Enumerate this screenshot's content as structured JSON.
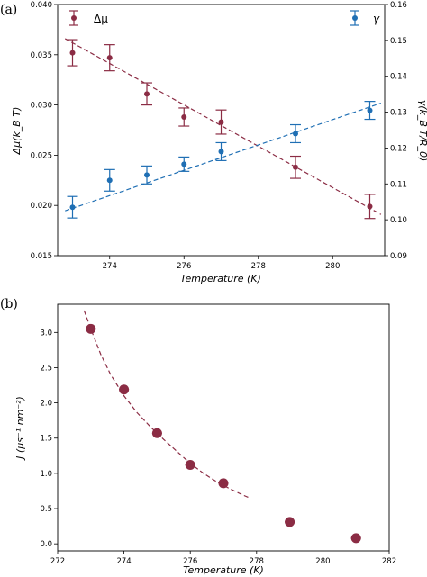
{
  "figure": {
    "panel_a_label": "(a)",
    "panel_b_label": "(b)"
  },
  "chart_data": [
    {
      "type": "scatter",
      "panel": "(a)",
      "xlabel": "Temperature (K)",
      "ylabel": "Δμ(k_B T)",
      "y2label": "γ(k_B T/R_0)",
      "xlim": [
        272.6,
        281.4
      ],
      "ylim": [
        0.015,
        0.04
      ],
      "y2lim": [
        0.09,
        0.16
      ],
      "xticks": [
        "274",
        "276",
        "278",
        "280"
      ],
      "yticks": [
        "0.015",
        "0.020",
        "0.025",
        "0.030",
        "0.035",
        "0.040"
      ],
      "y2ticks": [
        "0.09",
        "0.10",
        "0.11",
        "0.12",
        "0.13",
        "0.14",
        "0.15",
        "0.16"
      ],
      "legend_left": "top-left",
      "legend_right": "top-right",
      "grid": false,
      "series": [
        {
          "name": "Δμ",
          "axis": "left",
          "color": "#8b2c44",
          "x": [
            273,
            274,
            275,
            276,
            277,
            279,
            281
          ],
          "y": [
            0.0352,
            0.0347,
            0.0311,
            0.0288,
            0.0283,
            0.0238,
            0.0199
          ],
          "err": [
            0.0013,
            0.0013,
            0.0011,
            0.0009,
            0.0012,
            0.0011,
            0.0012
          ],
          "fit": {
            "x": [
              272.8,
              281.3
            ],
            "y": [
              0.0366,
              0.0191
            ]
          }
        },
        {
          "name": "γ",
          "axis": "right",
          "color": "#1f6fb4",
          "x": [
            273,
            274,
            275,
            276,
            277,
            279,
            281
          ],
          "y": [
            0.1035,
            0.111,
            0.1125,
            0.1155,
            0.119,
            0.124,
            0.1305
          ],
          "err": [
            0.003,
            0.003,
            0.0025,
            0.002,
            0.0025,
            0.0025,
            0.0025
          ],
          "fit": {
            "x": [
              272.8,
              281.3
            ],
            "y": [
              0.1025,
              0.1325
            ]
          }
        }
      ]
    },
    {
      "type": "scatter",
      "panel": "(b)",
      "xlabel": "Temperature (K)",
      "ylabel": "J (μs⁻¹ nm⁻²)",
      "xlim": [
        272,
        282
      ],
      "ylim": [
        -0.1,
        3.4
      ],
      "xticks": [
        "272",
        "274",
        "276",
        "278",
        "280",
        "282"
      ],
      "yticks": [
        "0.0",
        "0.5",
        "1.0",
        "1.5",
        "2.0",
        "2.5",
        "3.0"
      ],
      "grid": false,
      "series": [
        {
          "color": "#8b2c44",
          "x": [
            273,
            274,
            275,
            276,
            277,
            279,
            281
          ],
          "y": [
            3.05,
            2.19,
            1.57,
            1.12,
            0.86,
            0.31,
            0.08
          ],
          "xerr": [
            0.15,
            0.15,
            0.15,
            0.15,
            0.15,
            0.15,
            0.15
          ],
          "fit_x": [
            272.8,
            273.0,
            273.3,
            273.6,
            274.0,
            274.4,
            274.8,
            275.2,
            275.6,
            276.0,
            276.4,
            276.8,
            277.2,
            277.6,
            277.75
          ],
          "fit_y": [
            3.31,
            3.05,
            2.69,
            2.4,
            2.1,
            1.86,
            1.66,
            1.48,
            1.31,
            1.14,
            1.0,
            0.88,
            0.78,
            0.69,
            0.66
          ]
        }
      ]
    }
  ]
}
